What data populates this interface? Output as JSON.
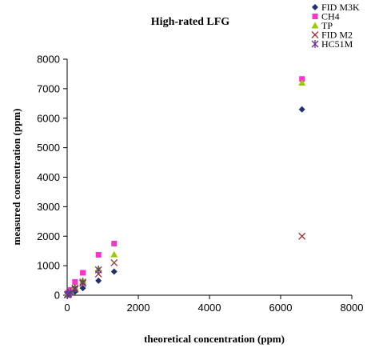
{
  "chart_data": {
    "type": "scatter",
    "title": "High-rated LFG",
    "xlabel": "theoretical concentration (ppm)",
    "ylabel": "measured concentration (ppm)",
    "xlim": [
      0,
      8000
    ],
    "ylim": [
      0,
      8000
    ],
    "xticks": [
      0,
      2000,
      4000,
      6000,
      8000
    ],
    "yticks": [
      0,
      1000,
      2000,
      3000,
      4000,
      5000,
      6000,
      7000,
      8000
    ],
    "grid": false,
    "legend_position": "top-right",
    "series": [
      {
        "name": "FID M3K",
        "marker": "diamond",
        "color": "#1f2f6f",
        "points": [
          [
            10,
            10
          ],
          [
            40,
            30
          ],
          [
            100,
            60
          ],
          [
            220,
            120
          ],
          [
            440,
            240
          ],
          [
            880,
            490
          ],
          [
            1320,
            800
          ],
          [
            6600,
            6300
          ]
        ]
      },
      {
        "name": "CH4",
        "marker": "square",
        "color": "#ff33cc",
        "points": [
          [
            10,
            30
          ],
          [
            40,
            90
          ],
          [
            100,
            180
          ],
          [
            220,
            450
          ],
          [
            440,
            760
          ],
          [
            880,
            1370
          ],
          [
            1320,
            1750
          ],
          [
            6600,
            7330
          ]
        ]
      },
      {
        "name": "TP",
        "marker": "triangle",
        "color": "#99cc00",
        "points": [
          [
            10,
            20
          ],
          [
            40,
            60
          ],
          [
            100,
            110
          ],
          [
            220,
            280
          ],
          [
            440,
            490
          ],
          [
            880,
            900
          ],
          [
            1320,
            1380
          ],
          [
            6600,
            7200
          ]
        ]
      },
      {
        "name": "FID M2",
        "marker": "x",
        "color": "#993333",
        "points": [
          [
            10,
            10
          ],
          [
            40,
            40
          ],
          [
            100,
            90
          ],
          [
            220,
            200
          ],
          [
            440,
            400
          ],
          [
            880,
            720
          ],
          [
            1320,
            1100
          ],
          [
            6600,
            2000
          ]
        ]
      },
      {
        "name": "HC51M",
        "marker": "asterisk",
        "color": "#663399",
        "points": [
          [
            10,
            20
          ],
          [
            40,
            50
          ],
          [
            100,
            100
          ],
          [
            220,
            240
          ],
          [
            440,
            450
          ],
          [
            880,
            860
          ]
        ]
      }
    ]
  }
}
